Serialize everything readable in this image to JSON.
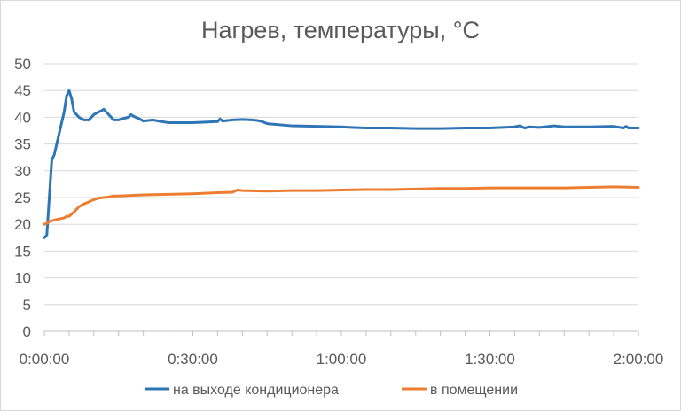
{
  "chart_data": {
    "type": "line",
    "title": "Нагрев, температуры, °C",
    "xlabel": "",
    "ylabel": "",
    "x_unit": "minutes",
    "xlim": [
      0,
      120
    ],
    "ylim": [
      0,
      50
    ],
    "x_ticks": [
      0,
      30,
      60,
      90,
      120
    ],
    "x_tick_labels": [
      "0:00:00",
      "0:30:00",
      "1:00:00",
      "1:30:00",
      "2:00:00"
    ],
    "y_ticks": [
      0,
      5,
      10,
      15,
      20,
      25,
      30,
      35,
      40,
      45,
      50
    ],
    "grid": "horizontal",
    "legend_position": "bottom",
    "series": [
      {
        "name": "на выходе кондиционера",
        "color": "#2E75B6",
        "x": [
          0,
          0.5,
          1,
          1.5,
          2,
          3,
          4,
          4.5,
          5,
          5.5,
          6,
          7,
          8,
          9,
          10,
          11,
          11.5,
          12,
          13,
          14,
          15,
          16,
          17,
          17.5,
          18,
          19,
          20,
          22,
          23,
          25,
          30,
          35,
          35.5,
          36,
          38,
          40,
          42,
          43,
          44,
          45,
          50,
          55,
          60,
          62,
          65,
          70,
          75,
          80,
          85,
          90,
          95,
          96,
          97,
          98,
          100,
          103,
          105,
          110,
          115,
          117,
          117.5,
          118,
          120
        ],
        "y": [
          17.5,
          18,
          25,
          32,
          33,
          37,
          41,
          44,
          45,
          43.5,
          41,
          40,
          39.5,
          39.5,
          40.5,
          41,
          41.2,
          41.5,
          40.5,
          39.5,
          39.5,
          39.8,
          40,
          40.5,
          40.2,
          39.8,
          39.3,
          39.5,
          39.3,
          39,
          39,
          39.2,
          39.7,
          39.3,
          39.5,
          39.6,
          39.5,
          39.4,
          39.2,
          38.8,
          38.4,
          38.3,
          38.2,
          38.1,
          38,
          38,
          37.9,
          37.9,
          38,
          38,
          38.2,
          38.4,
          38,
          38.2,
          38.1,
          38.4,
          38.2,
          38.2,
          38.3,
          38,
          38.3,
          38,
          38
        ]
      },
      {
        "name": "в помещении",
        "color": "#ED7D31",
        "x": [
          0,
          0.5,
          1,
          2,
          3,
          4,
          4.5,
          5,
          6,
          7,
          8,
          9,
          10,
          11,
          12,
          13,
          14,
          15,
          20,
          25,
          30,
          35,
          38,
          39,
          40,
          45,
          50,
          55,
          60,
          65,
          70,
          75,
          80,
          85,
          90,
          95,
          100,
          105,
          110,
          115,
          120
        ],
        "y": [
          20,
          20.2,
          20.5,
          20.8,
          21,
          21.2,
          21.5,
          21.5,
          22.3,
          23.3,
          23.8,
          24.2,
          24.6,
          24.9,
          25,
          25.1,
          25.3,
          25.3,
          25.5,
          25.6,
          25.7,
          25.9,
          26,
          26.4,
          26.3,
          26.2,
          26.3,
          26.3,
          26.4,
          26.5,
          26.5,
          26.6,
          26.7,
          26.7,
          26.8,
          26.8,
          26.8,
          26.8,
          26.9,
          27,
          26.9
        ]
      }
    ]
  }
}
